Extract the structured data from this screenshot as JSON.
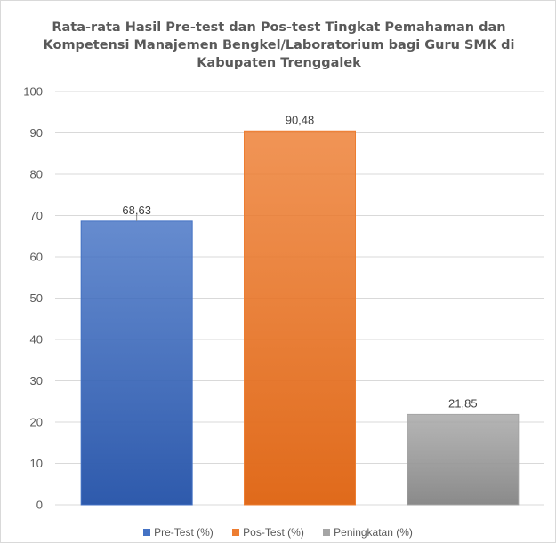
{
  "chart_data": {
    "type": "bar",
    "title_lines": [
      "Rata-rata Hasil Pre-test dan Pos-test Tingkat Pemahaman dan",
      "Kompetensi Manajemen Bengkel/Laboratorium  bagi Guru SMK di",
      "Kabupaten Trenggalek"
    ],
    "categories": [
      "Pre-Test  (%)",
      "Pos-Test (%)",
      "Peningkatan (%)"
    ],
    "values": [
      68.63,
      90.48,
      21.85
    ],
    "data_labels": [
      "68,63",
      "90,48",
      "21,85"
    ],
    "ylim": [
      0,
      100
    ],
    "yticks": [
      "0",
      "10",
      "20",
      "30",
      "40",
      "50",
      "60",
      "70",
      "80",
      "90",
      "100"
    ],
    "grid": true,
    "legend_position": "bottom",
    "colors": {
      "series": [
        "#4472c4",
        "#ed7d31",
        "#a5a5a5"
      ],
      "series_dark": [
        "#2e5aac",
        "#e06a1b",
        "#8a8a8a"
      ],
      "gridline": "#d9d9d9"
    }
  }
}
